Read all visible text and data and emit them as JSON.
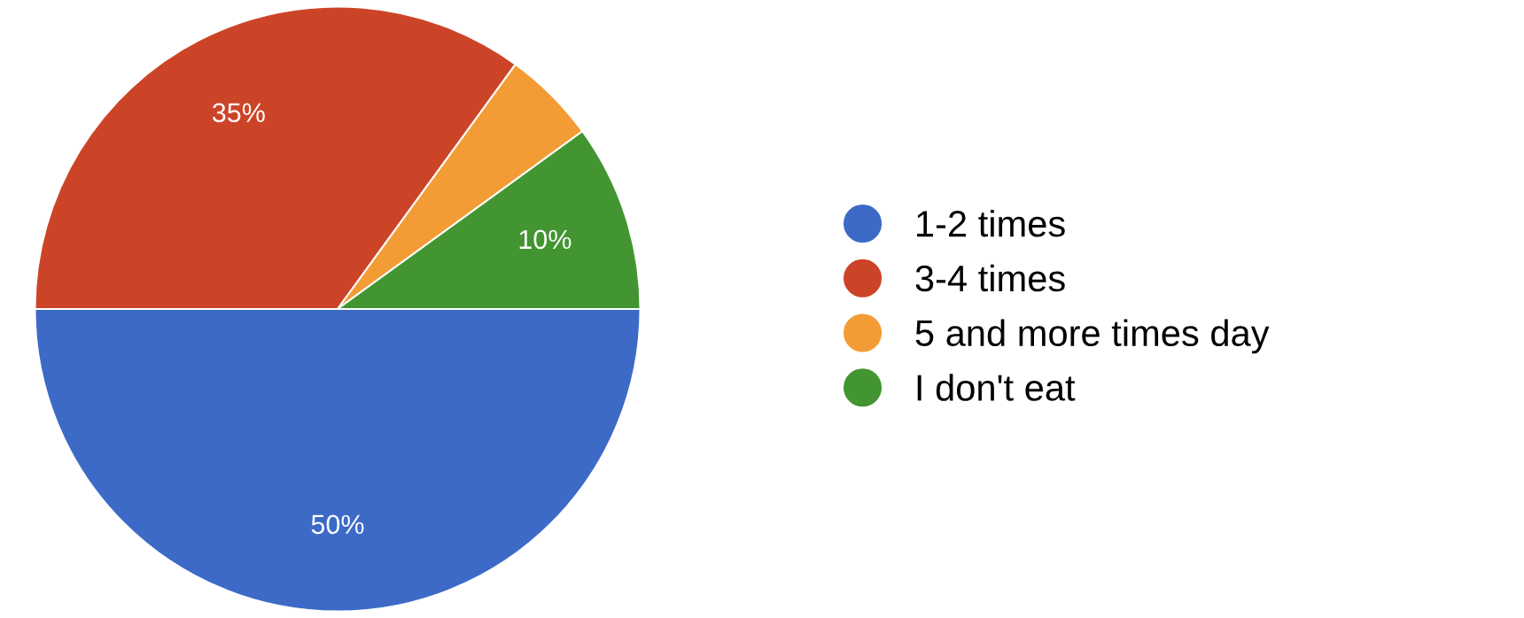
{
  "chart_data": {
    "type": "pie",
    "categories": [
      "1-2 times",
      "3-4 times",
      "5 and more times day",
      "I don't eat"
    ],
    "values": [
      50,
      35,
      5,
      10
    ],
    "colors": [
      "#3d6ac6",
      "#cc4427",
      "#f39c36",
      "#429531"
    ],
    "value_labels": [
      "50%",
      "35%",
      null,
      "10%"
    ],
    "legend": "right"
  }
}
